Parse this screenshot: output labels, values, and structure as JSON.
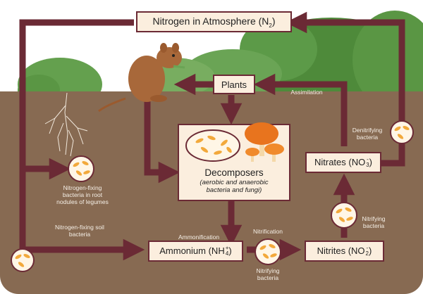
{
  "boxes": {
    "atmosphere": {
      "text": "Nitrogen in Atmosphere (N",
      "sub": "2",
      "close": ")"
    },
    "plants": {
      "text": "Plants"
    },
    "decomposers": {
      "title": "Decomposers",
      "detail": "(aerobic and anaerobic bacteria and fungi)"
    },
    "nitrates": {
      "text": "Nitrates (NO",
      "sup": "-",
      "sub": "3",
      "close": ")"
    },
    "nitrites": {
      "text": "Nitrites (NO",
      "sup": "-",
      "sub": "2",
      "close": ")"
    },
    "ammonium": {
      "text": "Ammonium (NH",
      "sup": "+",
      "sub": "4",
      "close": ")"
    }
  },
  "labels": {
    "assimilation": "Assimilation",
    "denitrifying": "Denitrifying bacteria",
    "root_nodules": "Nitrogen-fixing bacteria in root nodules of legumes",
    "soil_bacteria": "Nitrogen-fixing soil bacteria",
    "ammonification": "Ammonification",
    "nitrification": "Nitrification",
    "nitrifying_bottom": "Nitrifying bacteria",
    "nitrifying_right": "Nitrifying bacteria"
  },
  "colors": {
    "soil": "#876a52",
    "sky": "#ffffff",
    "arrow": "#6b2a35",
    "box_fill": "#fbeede",
    "trees": "#4e8a3a",
    "bacteria": "#f2a93b",
    "mushroom": "#e8741e"
  }
}
